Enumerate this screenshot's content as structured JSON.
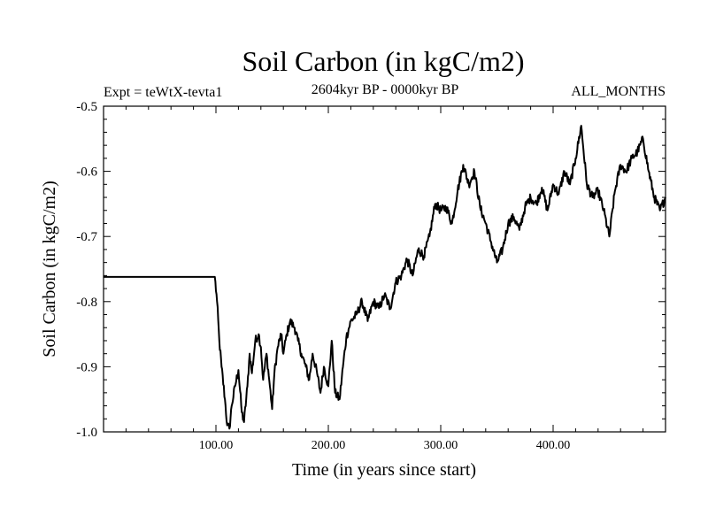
{
  "chart_data": {
    "type": "line",
    "title": "Soil Carbon (in kgC/m2)",
    "subtitle_left": "Expt = teWtX-tevta1",
    "subtitle_center": "2604kyr BP - 0000kyr BP",
    "subtitle_right": "ALL_MONTHS",
    "xlabel": "Time (in years since start)",
    "ylabel": "Soil Carbon (in kgC/m2)",
    "xlim": [
      0,
      500
    ],
    "ylim": [
      -1.0,
      -0.5
    ],
    "x_ticks": [
      {
        "value": 100,
        "label": "100.00"
      },
      {
        "value": 200,
        "label": "200.00"
      },
      {
        "value": 300,
        "label": "300.00"
      },
      {
        "value": 400,
        "label": "400.00"
      }
    ],
    "y_ticks": [
      {
        "value": -1.0,
        "label": "-1.0"
      },
      {
        "value": -0.9,
        "label": "-0.9"
      },
      {
        "value": -0.8,
        "label": "-0.8"
      },
      {
        "value": -0.7,
        "label": "-0.7"
      },
      {
        "value": -0.6,
        "label": "-0.6"
      },
      {
        "value": -0.5,
        "label": "-0.5"
      }
    ],
    "series": [
      {
        "name": "Soil Carbon",
        "color": "#000000",
        "x": [
          0,
          50,
          99,
          101,
          103,
          105,
          108,
          110,
          112,
          114,
          117,
          120,
          123,
          125,
          128,
          130,
          132,
          135,
          138,
          140,
          142,
          145,
          148,
          150,
          152,
          155,
          158,
          160,
          163,
          166,
          170,
          173,
          176,
          180,
          183,
          186,
          190,
          193,
          196,
          200,
          203,
          206,
          210,
          213,
          216,
          220,
          225,
          230,
          235,
          240,
          245,
          250,
          255,
          260,
          265,
          270,
          275,
          280,
          285,
          290,
          295,
          300,
          305,
          310,
          315,
          320,
          325,
          330,
          335,
          340,
          345,
          350,
          355,
          360,
          365,
          370,
          375,
          380,
          385,
          390,
          395,
          400,
          405,
          410,
          415,
          420,
          425,
          430,
          435,
          440,
          445,
          450,
          455,
          460,
          465,
          470,
          475,
          480,
          485,
          490,
          495,
          500
        ],
        "values": [
          -0.762,
          -0.762,
          -0.762,
          -0.8,
          -0.86,
          -0.9,
          -0.95,
          -0.99,
          -0.995,
          -0.96,
          -0.93,
          -0.905,
          -0.97,
          -0.985,
          -0.93,
          -0.88,
          -0.91,
          -0.86,
          -0.85,
          -0.87,
          -0.92,
          -0.88,
          -0.93,
          -0.965,
          -0.91,
          -0.87,
          -0.85,
          -0.88,
          -0.85,
          -0.83,
          -0.84,
          -0.86,
          -0.88,
          -0.9,
          -0.92,
          -0.88,
          -0.91,
          -0.94,
          -0.9,
          -0.93,
          -0.86,
          -0.94,
          -0.95,
          -0.9,
          -0.855,
          -0.83,
          -0.82,
          -0.8,
          -0.83,
          -0.8,
          -0.81,
          -0.79,
          -0.81,
          -0.77,
          -0.76,
          -0.735,
          -0.76,
          -0.72,
          -0.73,
          -0.7,
          -0.65,
          -0.66,
          -0.655,
          -0.68,
          -0.63,
          -0.59,
          -0.62,
          -0.6,
          -0.655,
          -0.68,
          -0.71,
          -0.74,
          -0.72,
          -0.68,
          -0.67,
          -0.69,
          -0.655,
          -0.64,
          -0.65,
          -0.625,
          -0.66,
          -0.62,
          -0.635,
          -0.6,
          -0.62,
          -0.58,
          -0.53,
          -0.62,
          -0.64,
          -0.63,
          -0.66,
          -0.7,
          -0.63,
          -0.59,
          -0.6,
          -0.58,
          -0.57,
          -0.55,
          -0.6,
          -0.64,
          -0.66,
          -0.64
        ]
      }
    ]
  }
}
